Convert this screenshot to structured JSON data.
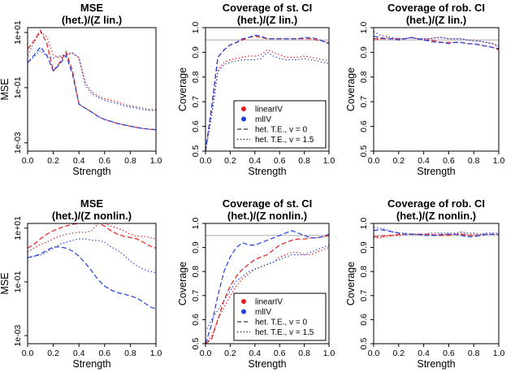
{
  "colors": {
    "linearIV": "#e41a1c",
    "mlIV": "#1f3fdd",
    "reference_line": "#b3b3b3"
  },
  "chart_data": [
    {
      "type": "line",
      "scale": "log",
      "title": "MSE",
      "subtitle": "(het.)/(Z lin.)",
      "xlabel": "Strength",
      "ylabel": "MSE",
      "xlim": [
        0,
        1
      ],
      "ylim": [
        0.0005,
        15
      ],
      "xticks": [
        "0.0",
        "0.2",
        "0.4",
        "0.6",
        "0.8",
        "1.0"
      ],
      "yticks": [
        {
          "v": 10,
          "label": "1e+01"
        },
        {
          "v": 0.1,
          "label": "1e-01"
        },
        {
          "v": 0.001,
          "label": "1e-03"
        }
      ],
      "x": [
        0,
        0.05,
        0.1,
        0.15,
        0.2,
        0.25,
        0.3,
        0.35,
        0.4,
        0.45,
        0.5,
        0.55,
        0.6,
        0.65,
        0.7,
        0.75,
        0.8,
        0.85,
        0.9,
        0.95,
        1.0
      ],
      "series": [
        {
          "method": "linearIV",
          "het": "v0",
          "values": [
            2.5,
            5.0,
            12.0,
            4.0,
            0.4,
            0.8,
            2.0,
            0.4,
            0.025,
            0.018,
            0.013,
            0.009,
            0.007,
            0.006,
            0.005,
            0.0045,
            0.004,
            0.0036,
            0.0033,
            0.0031,
            0.003
          ]
        },
        {
          "method": "linearIV",
          "het": "v1.5",
          "values": [
            1.5,
            4.5,
            10.0,
            7.0,
            1.5,
            1.2,
            1.6,
            1.8,
            1.2,
            0.15,
            0.07,
            0.05,
            0.04,
            0.035,
            0.03,
            0.025,
            0.022,
            0.02,
            0.018,
            0.016,
            0.016
          ]
        },
        {
          "method": "mlIV",
          "het": "v0",
          "values": [
            0.8,
            1.5,
            3.0,
            1.5,
            0.4,
            0.7,
            1.5,
            0.3,
            0.025,
            0.018,
            0.013,
            0.009,
            0.007,
            0.006,
            0.005,
            0.0045,
            0.004,
            0.0036,
            0.0033,
            0.0031,
            0.003
          ]
        },
        {
          "method": "mlIV",
          "het": "v1.5",
          "values": [
            0.8,
            1.3,
            2.2,
            1.4,
            1.2,
            1.4,
            1.6,
            1.8,
            1.2,
            0.12,
            0.06,
            0.045,
            0.035,
            0.03,
            0.026,
            0.022,
            0.02,
            0.018,
            0.016,
            0.015,
            0.015
          ]
        }
      ]
    },
    {
      "type": "line",
      "title": "Coverage of st. CI",
      "subtitle": "(het.)/(Z lin.)",
      "xlabel": "Strength",
      "ylabel": "Coverage",
      "xlim": [
        0,
        1
      ],
      "ylim": [
        0.5,
        1.0
      ],
      "hline": 0.95,
      "xticks": [
        "0.0",
        "0.2",
        "0.4",
        "0.6",
        "0.8",
        "1.0"
      ],
      "yticks": [
        "0.5",
        "0.6",
        "0.7",
        "0.8",
        "0.9",
        "1.0"
      ],
      "legend": {
        "position": "bottom-right",
        "items": [
          "linearIV",
          "mlIV",
          "het. T.E., v = 0",
          "het. T.E., v = 1.5"
        ]
      },
      "x": [
        0,
        0.05,
        0.1,
        0.15,
        0.2,
        0.25,
        0.3,
        0.35,
        0.4,
        0.45,
        0.5,
        0.55,
        0.6,
        0.65,
        0.7,
        0.75,
        0.8,
        0.85,
        0.9,
        0.95,
        1.0
      ],
      "series": [
        {
          "method": "linearIV",
          "het": "v0",
          "values": [
            0.45,
            0.68,
            0.88,
            0.91,
            0.93,
            0.94,
            0.95,
            0.96,
            0.965,
            0.96,
            0.955,
            0.955,
            0.955,
            0.955,
            0.955,
            0.955,
            0.955,
            0.955,
            0.95,
            0.945,
            0.94
          ]
        },
        {
          "method": "linearIV",
          "het": "v1.5",
          "values": [
            0.45,
            0.65,
            0.83,
            0.86,
            0.87,
            0.875,
            0.88,
            0.885,
            0.885,
            0.89,
            0.91,
            0.9,
            0.89,
            0.88,
            0.88,
            0.88,
            0.885,
            0.88,
            0.875,
            0.87,
            0.865
          ]
        },
        {
          "method": "mlIV",
          "het": "v0",
          "values": [
            0.45,
            0.68,
            0.88,
            0.91,
            0.93,
            0.94,
            0.955,
            0.96,
            0.97,
            0.965,
            0.955,
            0.955,
            0.955,
            0.955,
            0.955,
            0.955,
            0.96,
            0.96,
            0.955,
            0.945,
            0.935
          ]
        },
        {
          "method": "mlIV",
          "het": "v1.5",
          "values": [
            0.45,
            0.64,
            0.82,
            0.85,
            0.86,
            0.865,
            0.87,
            0.87,
            0.87,
            0.875,
            0.9,
            0.885,
            0.875,
            0.87,
            0.87,
            0.87,
            0.875,
            0.87,
            0.865,
            0.86,
            0.855
          ]
        }
      ]
    },
    {
      "type": "line",
      "title": "Coverage of rob. CI",
      "subtitle": "(het.)/(Z lin.)",
      "xlabel": "Strength",
      "ylabel": "Coverage",
      "xlim": [
        0,
        1
      ],
      "ylim": [
        0.5,
        1.0
      ],
      "hline": 0.95,
      "xticks": [
        "0.0",
        "0.2",
        "0.4",
        "0.6",
        "0.8",
        "1.0"
      ],
      "yticks": [
        "0.5",
        "0.6",
        "0.7",
        "0.8",
        "0.9",
        "1.0"
      ],
      "x": [
        0,
        0.05,
        0.1,
        0.15,
        0.2,
        0.25,
        0.3,
        0.35,
        0.4,
        0.45,
        0.5,
        0.55,
        0.6,
        0.65,
        0.7,
        0.75,
        0.8,
        0.85,
        0.9,
        0.95,
        1.0
      ],
      "series": [
        {
          "method": "linearIV",
          "het": "v0",
          "values": [
            0.955,
            0.955,
            0.955,
            0.955,
            0.955,
            0.955,
            0.96,
            0.955,
            0.95,
            0.95,
            0.945,
            0.94,
            0.94,
            0.94,
            0.94,
            0.935,
            0.935,
            0.93,
            0.925,
            0.92,
            0.91
          ]
        },
        {
          "method": "linearIV",
          "het": "v1.5",
          "values": [
            0.95,
            0.955,
            0.96,
            0.955,
            0.955,
            0.955,
            0.96,
            0.955,
            0.955,
            0.955,
            0.96,
            0.96,
            0.955,
            0.955,
            0.955,
            0.95,
            0.95,
            0.945,
            0.94,
            0.935,
            0.925
          ]
        },
        {
          "method": "mlIV",
          "het": "v0",
          "values": [
            0.965,
            0.96,
            0.955,
            0.955,
            0.95,
            0.955,
            0.96,
            0.955,
            0.95,
            0.945,
            0.94,
            0.94,
            0.935,
            0.94,
            0.94,
            0.935,
            0.935,
            0.93,
            0.925,
            0.92,
            0.915
          ]
        },
        {
          "method": "mlIV",
          "het": "v1.5",
          "values": [
            0.985,
            0.97,
            0.965,
            0.96,
            0.955,
            0.955,
            0.96,
            0.955,
            0.955,
            0.955,
            0.96,
            0.96,
            0.955,
            0.955,
            0.955,
            0.95,
            0.945,
            0.945,
            0.94,
            0.935,
            0.925
          ]
        }
      ]
    },
    {
      "type": "line",
      "scale": "log",
      "title": "MSE",
      "subtitle": "(het.)/(Z nonlin.)",
      "xlabel": "Strength",
      "ylabel": "MSE",
      "xlim": [
        0,
        1
      ],
      "ylim": [
        0.0005,
        15
      ],
      "xticks": [
        "0.0",
        "0.2",
        "0.4",
        "0.6",
        "0.8",
        "1.0"
      ],
      "yticks": [
        {
          "v": 10,
          "label": "1e+01"
        },
        {
          "v": 0.1,
          "label": "1e-01"
        },
        {
          "v": 0.001,
          "label": "1e-03"
        }
      ],
      "x": [
        0,
        0.05,
        0.1,
        0.15,
        0.2,
        0.25,
        0.3,
        0.35,
        0.4,
        0.45,
        0.5,
        0.55,
        0.6,
        0.65,
        0.7,
        0.75,
        0.8,
        0.85,
        0.9,
        0.95,
        1.0
      ],
      "series": [
        {
          "method": "linearIV",
          "het": "v0",
          "values": [
            1.8,
            2.5,
            4.0,
            6.0,
            8.0,
            10.0,
            12.0,
            14.0,
            15.0,
            15.0,
            15.0,
            15.0,
            12.0,
            8.0,
            6.0,
            5.0,
            4.5,
            4.0,
            3.0,
            2.2,
            1.8
          ]
        },
        {
          "method": "linearIV",
          "het": "v1.5",
          "values": [
            1.3,
            1.8,
            2.5,
            3.0,
            4.0,
            5.0,
            6.0,
            6.5,
            7.0,
            7.0,
            8.0,
            15.0,
            15.0,
            12.0,
            10.0,
            8.0,
            6.0,
            5.0,
            5.0,
            4.5,
            4.0
          ]
        },
        {
          "method": "mlIV",
          "het": "v0",
          "values": [
            0.8,
            0.9,
            1.1,
            1.5,
            2.0,
            2.0,
            1.8,
            1.4,
            0.9,
            0.5,
            0.25,
            0.12,
            0.07,
            0.05,
            0.04,
            0.035,
            0.03,
            0.025,
            0.018,
            0.012,
            0.01
          ]
        },
        {
          "method": "mlIV",
          "het": "v1.5",
          "values": [
            0.8,
            0.9,
            1.0,
            1.3,
            1.8,
            2.5,
            3.0,
            3.5,
            4.0,
            4.0,
            3.5,
            3.5,
            3.0,
            2.0,
            1.5,
            1.0,
            0.6,
            0.4,
            0.3,
            0.25,
            0.22
          ]
        }
      ]
    },
    {
      "type": "line",
      "title": "Coverage of st. CI",
      "subtitle": "(het.)/(Z nonlin.)",
      "xlabel": "Strength",
      "ylabel": "Coverage",
      "xlim": [
        0,
        1
      ],
      "ylim": [
        0.5,
        1.0
      ],
      "hline": 0.95,
      "xticks": [
        "0.0",
        "0.2",
        "0.4",
        "0.6",
        "0.8",
        "1.0"
      ],
      "yticks": [
        "0.5",
        "0.6",
        "0.7",
        "0.8",
        "0.9",
        "1.0"
      ],
      "legend": {
        "position": "bottom-right",
        "items": [
          "linearIV",
          "mlIV",
          "het. T.E., v = 0",
          "het. T.E., v = 1.5"
        ]
      },
      "x": [
        0,
        0.05,
        0.1,
        0.15,
        0.2,
        0.25,
        0.3,
        0.35,
        0.4,
        0.45,
        0.5,
        0.55,
        0.6,
        0.65,
        0.7,
        0.75,
        0.8,
        0.85,
        0.9,
        0.95,
        1.0
      ],
      "series": [
        {
          "method": "linearIV",
          "het": "v0",
          "values": [
            0.45,
            0.52,
            0.6,
            0.68,
            0.74,
            0.78,
            0.81,
            0.83,
            0.85,
            0.86,
            0.87,
            0.89,
            0.91,
            0.92,
            0.93,
            0.935,
            0.935,
            0.94,
            0.94,
            0.945,
            0.95
          ]
        },
        {
          "method": "linearIV",
          "het": "v1.5",
          "values": [
            0.45,
            0.53,
            0.6,
            0.65,
            0.7,
            0.74,
            0.77,
            0.79,
            0.81,
            0.82,
            0.83,
            0.84,
            0.86,
            0.87,
            0.88,
            0.88,
            0.87,
            0.87,
            0.88,
            0.89,
            0.9
          ]
        },
        {
          "method": "mlIV",
          "het": "v0",
          "values": [
            0.45,
            0.58,
            0.7,
            0.8,
            0.86,
            0.9,
            0.92,
            0.91,
            0.91,
            0.92,
            0.93,
            0.94,
            0.95,
            0.96,
            0.97,
            0.96,
            0.95,
            0.94,
            0.94,
            0.945,
            0.955
          ]
        },
        {
          "method": "mlIV",
          "het": "v1.5",
          "values": [
            0.55,
            0.6,
            0.64,
            0.68,
            0.72,
            0.76,
            0.78,
            0.8,
            0.81,
            0.82,
            0.83,
            0.84,
            0.85,
            0.86,
            0.87,
            0.87,
            0.87,
            0.88,
            0.89,
            0.9,
            0.91
          ]
        }
      ]
    },
    {
      "type": "line",
      "title": "Coverage of rob. CI",
      "subtitle": "(het.)/(Z nonlin.)",
      "xlabel": "Strength",
      "ylabel": "Coverage",
      "xlim": [
        0,
        1
      ],
      "ylim": [
        0.5,
        1.0
      ],
      "hline": 0.95,
      "xticks": [
        "0.0",
        "0.2",
        "0.4",
        "0.6",
        "0.8",
        "1.0"
      ],
      "yticks": [
        "0.5",
        "0.6",
        "0.7",
        "0.8",
        "0.9",
        "1.0"
      ],
      "x": [
        0,
        0.05,
        0.1,
        0.15,
        0.2,
        0.25,
        0.3,
        0.35,
        0.4,
        0.45,
        0.5,
        0.55,
        0.6,
        0.65,
        0.7,
        0.75,
        0.8,
        0.85,
        0.9,
        0.95,
        1.0
      ],
      "series": [
        {
          "method": "linearIV",
          "het": "v0",
          "values": [
            0.945,
            0.945,
            0.95,
            0.95,
            0.955,
            0.955,
            0.955,
            0.955,
            0.955,
            0.955,
            0.95,
            0.95,
            0.95,
            0.955,
            0.955,
            0.95,
            0.95,
            0.95,
            0.955,
            0.955,
            0.955
          ]
        },
        {
          "method": "linearIV",
          "het": "v1.5",
          "values": [
            0.94,
            0.94,
            0.945,
            0.95,
            0.95,
            0.955,
            0.955,
            0.955,
            0.955,
            0.955,
            0.955,
            0.955,
            0.955,
            0.955,
            0.96,
            0.955,
            0.955,
            0.955,
            0.955,
            0.955,
            0.955
          ]
        },
        {
          "method": "mlIV",
          "het": "v0",
          "values": [
            0.97,
            0.975,
            0.97,
            0.965,
            0.96,
            0.955,
            0.955,
            0.955,
            0.95,
            0.95,
            0.95,
            0.955,
            0.955,
            0.955,
            0.95,
            0.945,
            0.945,
            0.95,
            0.955,
            0.955,
            0.955
          ]
        },
        {
          "method": "mlIV",
          "het": "v1.5",
          "values": [
            0.985,
            0.98,
            0.975,
            0.965,
            0.96,
            0.96,
            0.955,
            0.955,
            0.955,
            0.96,
            0.96,
            0.96,
            0.96,
            0.96,
            0.965,
            0.96,
            0.96,
            0.955,
            0.96,
            0.96,
            0.96
          ]
        }
      ]
    }
  ]
}
